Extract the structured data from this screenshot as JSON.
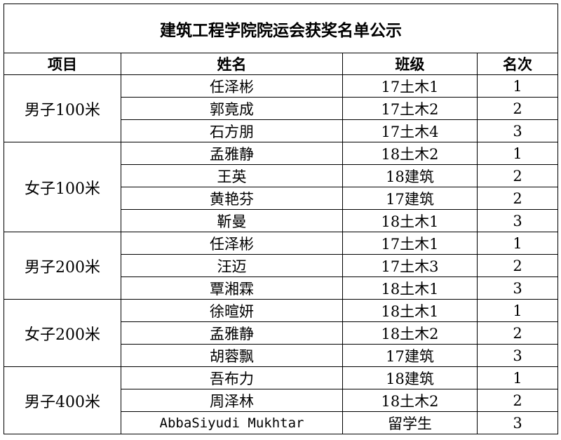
{
  "header": {
    "title": "建筑工程学院院运会获奖名单公示"
  },
  "table": {
    "columns": [
      "项目",
      "姓名",
      "班级",
      "名次"
    ],
    "groups": [
      {
        "event": "男子100米",
        "rows": [
          [
            "任泽彬",
            "17土木1",
            1
          ],
          [
            "郭竟成",
            "17土木2",
            2
          ],
          [
            "石方朋",
            "17土木4",
            3
          ]
        ]
      },
      {
        "event": "女子100米",
        "rows": [
          [
            "孟雅静",
            "18土木2",
            1
          ],
          [
            "王英",
            "18建筑",
            2
          ],
          [
            "黄艳芬",
            "17建筑",
            2
          ],
          [
            "靳曼",
            "18土木1",
            3
          ]
        ]
      },
      {
        "event": "男子200米",
        "rows": [
          [
            "任泽彬",
            "17土木1",
            1
          ],
          [
            "汪迈",
            "17土木3",
            2
          ],
          [
            "覃湘霖",
            "18土木1",
            3
          ]
        ]
      },
      {
        "event": "女子200米",
        "rows": [
          [
            "徐暄妍",
            "18土木1",
            1
          ],
          [
            "孟雅静",
            "18土木2",
            2
          ],
          [
            "胡蓉飘",
            "17建筑",
            3
          ]
        ]
      },
      {
        "event": "男子400米",
        "rows": [
          [
            "吾布力",
            "18建筑",
            1
          ],
          [
            "周泽林",
            "18土木2",
            2
          ],
          [
            "AbbaSiyudi Mukhtar",
            "留学生",
            3
          ]
        ]
      }
    ]
  }
}
